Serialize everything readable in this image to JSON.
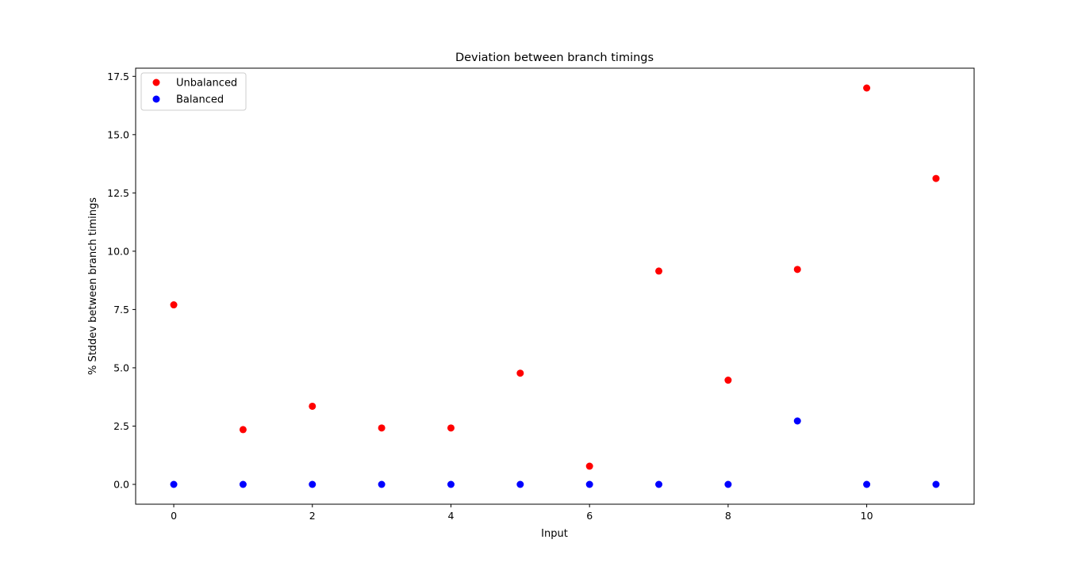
{
  "chart_data": {
    "type": "scatter",
    "title": "Deviation between branch timings",
    "xlabel": "Input",
    "ylabel": "% Stddev between branch timings",
    "xlim": [
      -0.55,
      11.55
    ],
    "ylim": [
      -0.85,
      17.85
    ],
    "x_ticks": [
      0,
      2,
      4,
      6,
      8,
      10
    ],
    "y_ticks": [
      0.0,
      2.5,
      5.0,
      7.5,
      10.0,
      12.5,
      15.0,
      17.5
    ],
    "x_tick_labels": [
      "0",
      "2",
      "4",
      "6",
      "8",
      "10"
    ],
    "y_tick_labels": [
      "0.0",
      "2.5",
      "5.0",
      "7.5",
      "10.0",
      "12.5",
      "15.0",
      "17.5"
    ],
    "grid": false,
    "legend_position": "upper-left",
    "x": [
      0,
      1,
      2,
      3,
      4,
      5,
      6,
      7,
      8,
      9,
      10,
      11
    ],
    "series": [
      {
        "name": "Unbalanced",
        "color": "#ff0000",
        "values": [
          7.7,
          2.35,
          3.35,
          2.42,
          2.42,
          4.77,
          0.78,
          9.15,
          4.47,
          9.22,
          17.0,
          13.12
        ]
      },
      {
        "name": "Balanced",
        "color": "#0000ff",
        "values": [
          0.0,
          0.0,
          0.0,
          0.0,
          0.0,
          0.0,
          0.0,
          0.0,
          0.0,
          2.72,
          0.0,
          0.0
        ]
      }
    ]
  }
}
